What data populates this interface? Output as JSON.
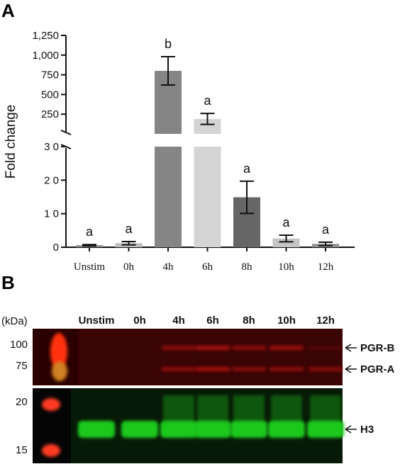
{
  "panels": {
    "a": "A",
    "b": "B"
  },
  "chart_data": {
    "type": "bar",
    "categories": [
      "Unstim",
      "0h",
      "4h",
      "6h",
      "8h",
      "10h",
      "12h"
    ],
    "values": [
      0.6,
      1.2,
      800,
      190,
      14.9,
      2.6,
      1.0
    ],
    "errors": [
      0.2,
      0.5,
      180,
      70,
      4.8,
      1.0,
      0.5
    ],
    "significance": [
      "a",
      "a",
      "b",
      "a",
      "a",
      "a",
      "a"
    ],
    "bar_colors": [
      "#8c8c8c",
      "#bdbdbd",
      "#858585",
      "#d4d4d4",
      "#666666",
      "#c4c4c4",
      "#909090"
    ],
    "ylabel": "Fold change",
    "axis_break": true,
    "lower_ylim": [
      0,
      30
    ],
    "lower_yticks": [
      {
        "v": 0,
        "label": "0"
      },
      {
        "v": 10,
        "label": "1 0"
      },
      {
        "v": 20,
        "label": "2 0"
      },
      {
        "v": 30,
        "label": "3 0"
      }
    ],
    "upper_ylim": [
      0,
      1250
    ],
    "upper_yticks": [
      {
        "v": 250,
        "label": "250"
      },
      {
        "v": 500,
        "label": "500"
      },
      {
        "v": 750,
        "label": "750"
      },
      {
        "v": 1000,
        "label": "1,000"
      },
      {
        "v": 1250,
        "label": "1,250"
      }
    ]
  },
  "blot": {
    "unit_label": "(kDa)",
    "lanes": [
      "Unstim",
      "0h",
      "4h",
      "6h",
      "8h",
      "10h",
      "12h"
    ],
    "upper_markers": [
      "100",
      "75"
    ],
    "lower_markers": [
      "20",
      "15"
    ],
    "bands": [
      "PGR-B",
      "PGR-A",
      "H3"
    ],
    "colors": {
      "pgr_channel": "#d01818",
      "h3_channel": "#1ec81e",
      "ladder_red": "#ff2a10"
    }
  }
}
